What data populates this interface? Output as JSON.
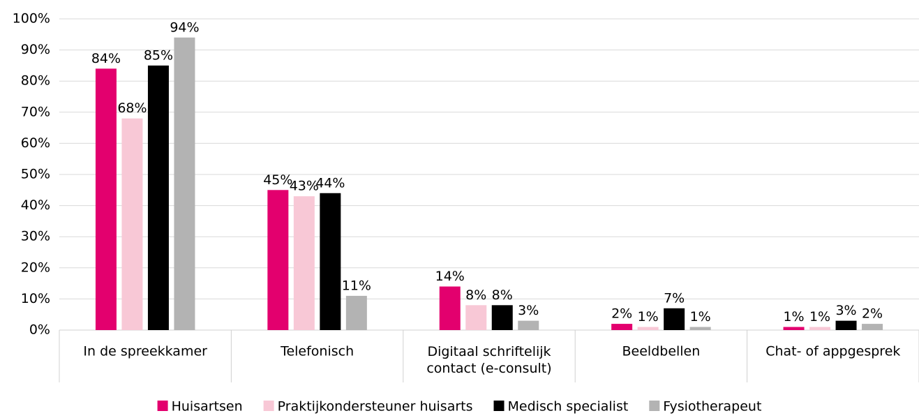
{
  "chart_data": {
    "type": "bar",
    "categories": [
      "In de spreekkamer",
      "Telefonisch",
      "Digitaal schriftelijk contact (e-consult)",
      "Beeldbellen",
      "Chat- of appgesprek"
    ],
    "series": [
      {
        "name": "Huisartsen",
        "color": "#e3006e",
        "values": [
          84,
          45,
          14,
          2,
          1
        ],
        "value_labels": [
          "84%",
          "45%",
          "14%",
          "2%",
          "1%"
        ]
      },
      {
        "name": "Praktijkondersteuner huisarts",
        "color": "#f8c8d6",
        "values": [
          68,
          43,
          8,
          1,
          1
        ],
        "value_labels": [
          "68%",
          "43%",
          "8%",
          "1%",
          "1%"
        ]
      },
      {
        "name": "Medisch specialist",
        "color": "#000000",
        "values": [
          85,
          44,
          8,
          7,
          3
        ],
        "value_labels": [
          "85%",
          "44%",
          "8%",
          "7%",
          "3%"
        ]
      },
      {
        "name": "Fysiotherapeut",
        "color": "#b3b3b3",
        "values": [
          94,
          11,
          3,
          1,
          2
        ],
        "value_labels": [
          "94%",
          "11%",
          "3%",
          "1%",
          "2%"
        ]
      }
    ],
    "ylim": [
      0,
      100
    ],
    "yticks": [
      {
        "value": 0,
        "label": "0%"
      },
      {
        "value": 10,
        "label": "10%"
      },
      {
        "value": 20,
        "label": "20%"
      },
      {
        "value": 30,
        "label": "30%"
      },
      {
        "value": 40,
        "label": "40%"
      },
      {
        "value": 50,
        "label": "50%"
      },
      {
        "value": 60,
        "label": "60%"
      },
      {
        "value": 70,
        "label": "70%"
      },
      {
        "value": 80,
        "label": "80%"
      },
      {
        "value": 90,
        "label": "90%"
      },
      {
        "value": 100,
        "label": "100%"
      }
    ],
    "grid": true,
    "legend": "bottom"
  }
}
